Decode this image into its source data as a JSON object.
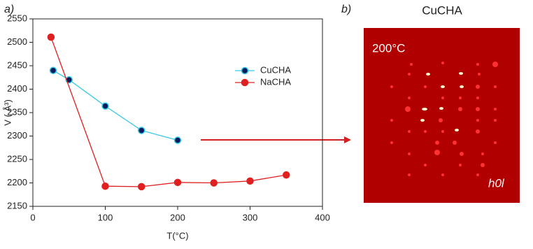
{
  "chart_data": {
    "type": "line",
    "panel_label": "a)",
    "xlabel": "T(°C)",
    "ylabel": "V ( Å³)",
    "xlim": [
      0,
      400
    ],
    "xticks": [
      0,
      100,
      200,
      300,
      400
    ],
    "ylim": [
      2150,
      2550
    ],
    "yticks": [
      2150,
      2200,
      2250,
      2300,
      2350,
      2400,
      2450,
      2500,
      2550
    ],
    "legend": "upper right",
    "series": [
      {
        "name": "CuCHA",
        "color": "#33c9e8",
        "marker_color": "#0a1a5a",
        "x": [
          28,
          50,
          100,
          150,
          200
        ],
        "values": [
          2440,
          2420,
          2364,
          2312,
          2291
        ]
      },
      {
        "name": "NaCHA",
        "color": "#e02020",
        "marker_color": "#e02020",
        "x": [
          25,
          100,
          150,
          200,
          250,
          300,
          350
        ],
        "values": [
          2511,
          2193,
          2192,
          2201,
          2200,
          2204,
          2217
        ]
      }
    ]
  },
  "panel_b": {
    "label": "b)",
    "title": "CuCHA",
    "temperature": "200°C",
    "plane": "h0l"
  }
}
